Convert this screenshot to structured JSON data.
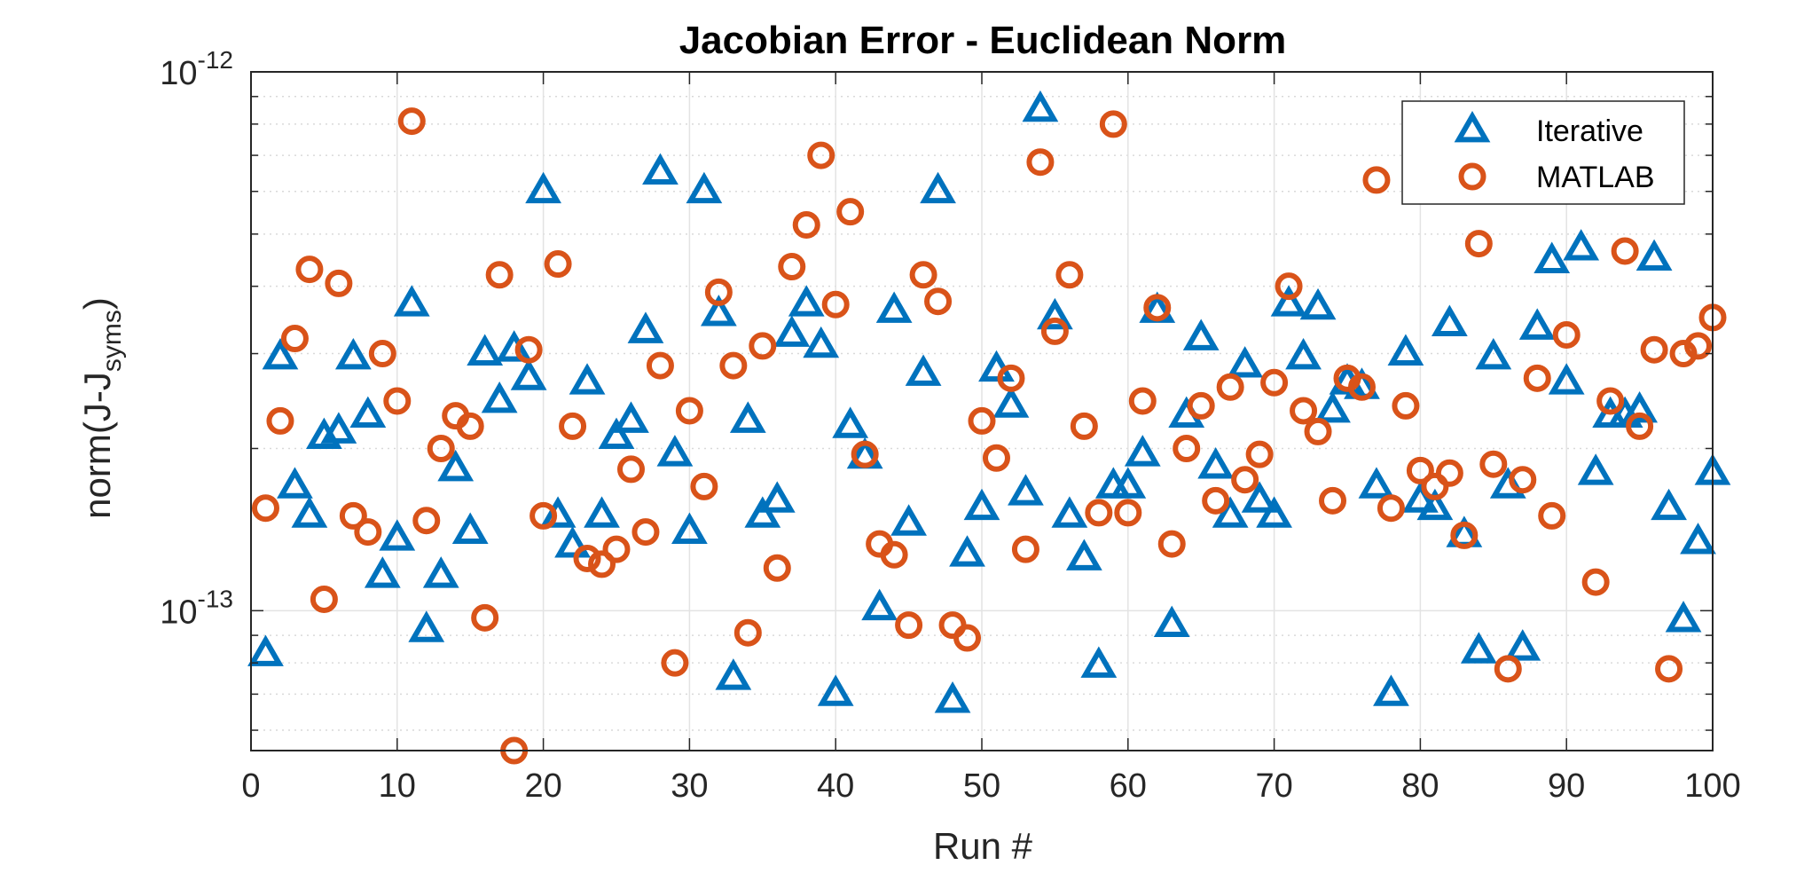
{
  "chart_data": {
    "type": "scatter",
    "title": "Jacobian Error - Euclidean Norm",
    "xlabel": "Run #",
    "ylabel": {
      "base": "norm(J-J",
      "subscript": "syms",
      "suffix": ")"
    },
    "xlim": [
      0,
      100
    ],
    "ylim": [
      5.5e-14,
      1e-12
    ],
    "yscale": "log",
    "xticks": [
      0,
      10,
      20,
      30,
      40,
      50,
      60,
      70,
      80,
      90,
      100
    ],
    "xtick_labels": [
      "0",
      "10",
      "20",
      "30",
      "40",
      "50",
      "60",
      "70",
      "80",
      "90",
      "100"
    ],
    "yticks": [
      {
        "value": 1e-13,
        "base": "10",
        "exp": "-13"
      },
      {
        "value": 1e-12,
        "base": "10",
        "exp": "-12"
      }
    ],
    "grid": true,
    "minor_grid": true,
    "legend": {
      "position": "top-right"
    },
    "series": [
      {
        "name": "Iterative",
        "marker": "triangle",
        "color": "#0072BD",
        "x": [
          1,
          2,
          3,
          4,
          5,
          6,
          7,
          8,
          9,
          10,
          11,
          12,
          13,
          14,
          15,
          16,
          17,
          18,
          19,
          20,
          21,
          22,
          23,
          24,
          25,
          26,
          27,
          28,
          29,
          30,
          31,
          32,
          33,
          34,
          35,
          36,
          37,
          38,
          39,
          40,
          41,
          42,
          43,
          44,
          45,
          46,
          47,
          48,
          49,
          50,
          51,
          52,
          53,
          54,
          55,
          56,
          57,
          58,
          59,
          60,
          61,
          62,
          63,
          64,
          65,
          66,
          67,
          68,
          69,
          70,
          71,
          72,
          73,
          74,
          75,
          76,
          77,
          78,
          79,
          80,
          81,
          82,
          83,
          84,
          85,
          86,
          87,
          88,
          89,
          90,
          91,
          92,
          93,
          94,
          95,
          96,
          97,
          98,
          99,
          100
        ],
        "y": [
          8.3e-14,
          2.95e-13,
          1.7e-13,
          1.5e-13,
          2.1e-13,
          2.15e-13,
          2.95e-13,
          2.3e-13,
          1.16e-13,
          1.36e-13,
          3.7e-13,
          9.2e-14,
          1.16e-13,
          1.83e-13,
          1.4e-13,
          3e-13,
          2.45e-13,
          3.05e-13,
          2.7e-13,
          6e-13,
          1.5e-13,
          1.32e-13,
          2.65e-13,
          1.5e-13,
          2.1e-13,
          2.25e-13,
          3.3e-13,
          6.5e-13,
          1.95e-13,
          1.4e-13,
          6e-13,
          3.55e-13,
          7.5e-14,
          2.25e-13,
          1.5e-13,
          1.6e-13,
          3.25e-13,
          3.7e-13,
          3.1e-13,
          7e-14,
          2.2e-13,
          1.93e-13,
          1.01e-13,
          3.6e-13,
          1.45e-13,
          2.75e-13,
          6e-13,
          6.8e-14,
          1.27e-13,
          1.55e-13,
          2.8e-13,
          2.4e-13,
          1.65e-13,
          8.5e-13,
          3.5e-13,
          1.5e-13,
          1.25e-13,
          7.9e-14,
          1.7e-13,
          1.7e-13,
          1.95e-13,
          3.6e-13,
          9.4e-14,
          2.3e-13,
          3.2e-13,
          1.85e-13,
          1.5e-13,
          2.85e-13,
          1.6e-13,
          1.5e-13,
          3.7e-13,
          2.95e-13,
          3.65e-13,
          2.35e-13,
          2.65e-13,
          2.6e-13,
          1.7e-13,
          7e-14,
          3e-13,
          1.6e-13,
          1.55e-13,
          3.4e-13,
          1.38e-13,
          8.4e-14,
          2.95e-13,
          1.7e-13,
          8.5e-14,
          3.35e-13,
          4.45e-13,
          2.65e-13,
          4.7e-13,
          1.8e-13,
          2.3e-13,
          2.3e-13,
          2.35e-13,
          4.5e-13,
          1.55e-13,
          9.6e-14,
          1.34e-13,
          1.8e-13
        ]
      },
      {
        "name": "MATLAB",
        "marker": "circle",
        "color": "#D95319",
        "x": [
          1,
          2,
          3,
          4,
          5,
          6,
          7,
          8,
          9,
          10,
          11,
          12,
          13,
          14,
          15,
          16,
          17,
          18,
          19,
          20,
          21,
          22,
          23,
          24,
          25,
          26,
          27,
          28,
          29,
          30,
          31,
          32,
          33,
          34,
          35,
          36,
          37,
          38,
          39,
          40,
          41,
          42,
          43,
          44,
          45,
          46,
          47,
          48,
          49,
          50,
          51,
          52,
          53,
          54,
          55,
          56,
          57,
          58,
          59,
          60,
          61,
          62,
          63,
          64,
          65,
          66,
          67,
          68,
          69,
          70,
          71,
          72,
          73,
          74,
          75,
          76,
          77,
          78,
          79,
          80,
          81,
          82,
          83,
          84,
          85,
          86,
          87,
          88,
          89,
          90,
          91,
          92,
          93,
          94,
          95,
          96,
          97,
          98,
          99,
          100
        ],
        "y": [
          1.55e-13,
          2.25e-13,
          3.2e-13,
          4.3e-13,
          1.05e-13,
          4.05e-13,
          1.5e-13,
          1.4e-13,
          3e-13,
          2.45e-13,
          8.1e-13,
          1.47e-13,
          2e-13,
          2.3e-13,
          2.2e-13,
          9.7e-14,
          4.2e-13,
          5.5e-14,
          3.05e-13,
          1.5e-13,
          4.4e-13,
          2.2e-13,
          1.25e-13,
          1.22e-13,
          1.3e-13,
          1.83e-13,
          1.4e-13,
          2.85e-13,
          8e-14,
          2.35e-13,
          1.7e-13,
          3.9e-13,
          2.85e-13,
          9.1e-14,
          3.1e-13,
          1.2e-13,
          4.35e-13,
          5.2e-13,
          7e-13,
          3.7e-13,
          5.5e-13,
          1.95e-13,
          1.33e-13,
          1.27e-13,
          9.4e-14,
          4.2e-13,
          3.75e-13,
          9.4e-14,
          8.9e-14,
          2.25e-13,
          1.92e-13,
          2.7e-13,
          1.3e-13,
          6.8e-13,
          3.3e-13,
          4.2e-13,
          2.2e-13,
          1.52e-13,
          8e-13,
          1.52e-13,
          2.45e-13,
          3.65e-13,
          1.33e-13,
          2e-13,
          2.4e-13,
          1.6e-13,
          2.6e-13,
          1.75e-13,
          1.95e-13,
          2.65e-13,
          4e-13,
          2.35e-13,
          2.15e-13,
          1.6e-13,
          2.7e-13,
          2.6e-13,
          6.3e-13,
          1.55e-13,
          2.4e-13,
          1.82e-13,
          1.7e-13,
          1.8e-13,
          1.38e-13,
          4.8e-13,
          1.87e-13,
          7.8e-14,
          1.75e-13,
          2.7e-13,
          1.5e-13,
          3.25e-13,
          6.2e-13,
          1.13e-13,
          2.45e-13,
          4.65e-13,
          2.2e-13,
          3.05e-13,
          7.8e-14,
          3e-13,
          3.1e-13,
          3.5e-13
        ]
      }
    ]
  }
}
